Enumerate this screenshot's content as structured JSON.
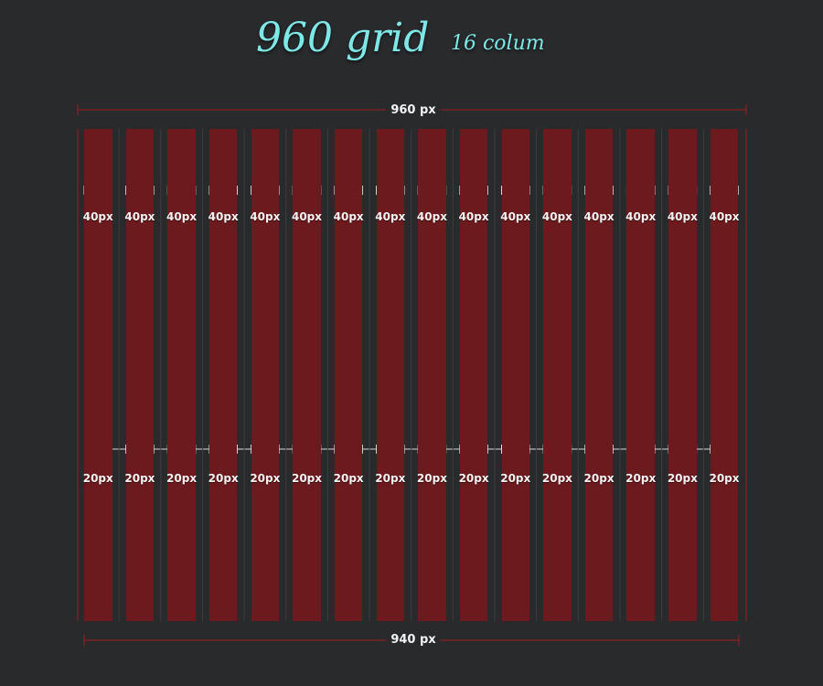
{
  "header": {
    "title": "960 grid",
    "subtitle": "16 colum"
  },
  "grid": {
    "total_width_label": "960 px",
    "inner_width_label": "940 px",
    "column_count": 16,
    "column_width_label": "40px",
    "gutter_width_label": "20px"
  },
  "colors": {
    "background": "#292a2c",
    "column": "#6d1a1e",
    "guide_line": "#a01c22",
    "title": "#7ee8e8",
    "label": "#f2f2f2"
  }
}
